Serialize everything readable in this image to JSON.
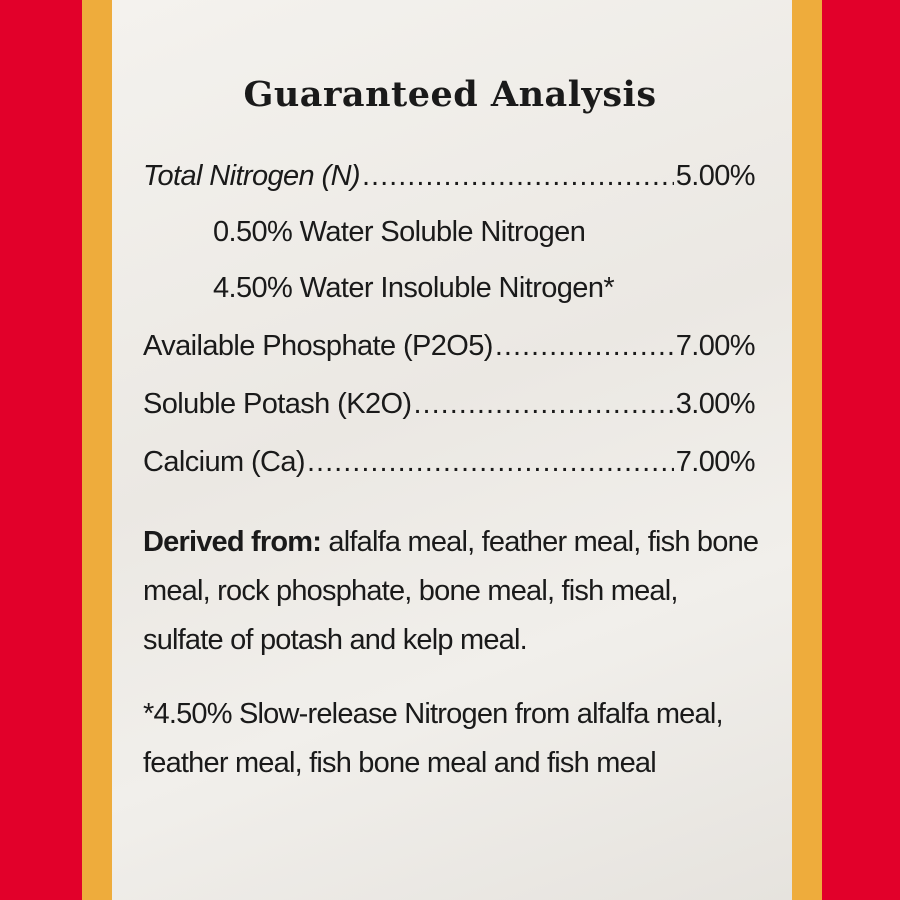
{
  "title": "Guaranteed Analysis",
  "rows": [
    {
      "label": "Total Nitrogen (N)",
      "value": "5.00%"
    },
    {
      "label": "Available Phosphate (P2O5)",
      "value": "7.00%"
    },
    {
      "label": "Soluble Potash (K2O)",
      "value": "3.00%"
    },
    {
      "label": "Calcium (Ca)",
      "value": "7.00%"
    }
  ],
  "sub_items": [
    "0.50% Water Soluble Nitrogen",
    "4.50% Water Insoluble Nitrogen*"
  ],
  "derived": {
    "heading": "Derived from:",
    "text": "alfalfa meal, feather meal, fish bone meal, rock phosphate, bone meal, fish meal, sulfate of potash and kelp meal."
  },
  "footnote": "*4.50% Slow-release Nitrogen from alfalfa meal, feather meal, fish bone meal and fish meal",
  "colors": {
    "outer": "#e2002a",
    "border": "#eeac3c",
    "label": "#f0eee9"
  }
}
